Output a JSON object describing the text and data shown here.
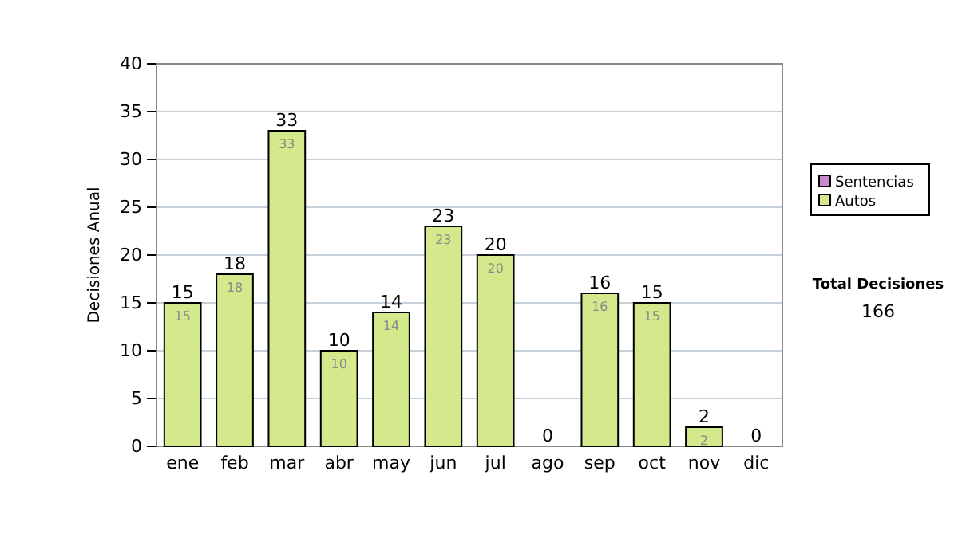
{
  "chart_data": {
    "type": "bar",
    "stacked": true,
    "ylabel": "Decisiones Anual",
    "categories": [
      "ene",
      "feb",
      "mar",
      "abr",
      "may",
      "jun",
      "jul",
      "ago",
      "sep",
      "oct",
      "nov",
      "dic"
    ],
    "series": [
      {
        "name": "Sentencias",
        "color": "#cc88cc",
        "values": [
          0,
          0,
          0,
          0,
          0,
          0,
          0,
          0,
          0,
          0,
          0,
          0
        ]
      },
      {
        "name": "Autos",
        "color": "#d4e88c",
        "values": [
          15,
          18,
          33,
          10,
          14,
          23,
          20,
          0,
          16,
          15,
          2,
          0
        ],
        "value_labels": [
          "15",
          "18",
          "33",
          "10",
          "14",
          "23",
          "20",
          null,
          "16",
          "15",
          "2",
          null
        ]
      }
    ],
    "totals": [
      "15",
      "18",
      "33",
      "10",
      "14",
      "23",
      "20",
      "0",
      "16",
      "15",
      "2",
      "0"
    ],
    "ylim": [
      0,
      40
    ],
    "yticks": [
      0,
      5,
      10,
      15,
      20,
      25,
      30,
      35,
      40
    ],
    "grid": "y",
    "legend": "right",
    "annotations": [
      "Total Decisiones",
      "166"
    ]
  }
}
